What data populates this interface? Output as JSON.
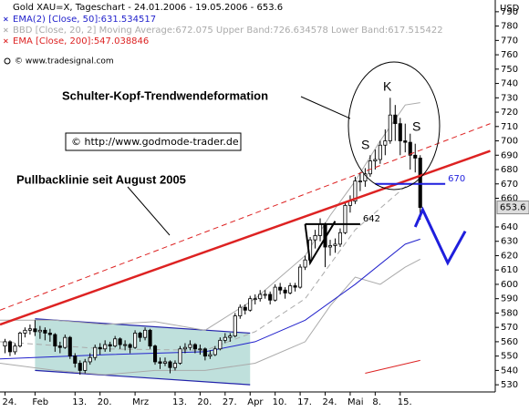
{
  "chart_data": {
    "type": "candlestick",
    "title": "Gold XAU=X, Tageschart - 24.01.2006 - 19.05.2006 - 653.6",
    "legend": [
      {
        "text": "EMA(2) [Close, 50]:631.534517",
        "color": "#2222cc"
      },
      {
        "text": "BBD [Close, 20, 2] Moving Average:672.075 Upper Band:726.634578 Lower Band:617.515422",
        "color": "#aaaaaa"
      },
      {
        "text": "EMA [Close, 200]:547.038846",
        "color": "#dd2222"
      }
    ],
    "source": "© www.tradesignal.com",
    "y_unit": "USD",
    "annotations": {
      "formation": "Schulter-Kopf-Trendwendeformation",
      "copyright": "© http://www.godmode-trader.de",
      "pullback": "Pullbacklinie seit August 2005",
      "left_shoulder": "S",
      "head": "K",
      "right_shoulder": "S"
    },
    "categories": [
      "24.",
      null,
      null,
      null,
      null,
      null,
      "Feb",
      null,
      null,
      null,
      null,
      null,
      null,
      null,
      "13.",
      null,
      null,
      null,
      null,
      "20.",
      null,
      null,
      null,
      null,
      null,
      null,
      "Mrz",
      null,
      null,
      null,
      null,
      null,
      null,
      null,
      "13.",
      null,
      null,
      null,
      null,
      "20.",
      null,
      null,
      null,
      null,
      "27.",
      null,
      null,
      null,
      null,
      "Apr",
      null,
      null,
      null,
      null,
      "10.",
      null,
      null,
      null,
      null,
      "17.",
      null,
      null,
      null,
      null,
      "24.",
      null,
      null,
      null,
      null,
      "Mai",
      null,
      null,
      null,
      null,
      "8.",
      null,
      null,
      null,
      null,
      "15.",
      null,
      null,
      null,
      null
    ],
    "ohlc": [
      [
        557,
        562,
        552,
        560
      ],
      [
        560,
        561,
        550,
        553
      ],
      [
        553,
        559,
        551,
        557
      ],
      [
        557,
        567,
        556,
        566
      ],
      [
        566,
        570,
        563,
        568
      ],
      [
        568,
        572,
        565,
        569
      ],
      [
        569,
        575,
        564,
        567
      ],
      [
        567,
        571,
        562,
        568
      ],
      [
        568,
        570,
        561,
        566
      ],
      [
        566,
        569,
        560,
        565
      ],
      [
        565,
        566,
        553,
        557
      ],
      [
        557,
        560,
        552,
        556
      ],
      [
        556,
        565,
        555,
        563
      ],
      [
        563,
        564,
        548,
        550
      ],
      [
        550,
        552,
        542,
        545
      ],
      [
        545,
        547,
        537,
        540
      ],
      [
        540,
        548,
        538,
        546
      ],
      [
        546,
        552,
        544,
        549
      ],
      [
        549,
        558,
        547,
        556
      ],
      [
        556,
        559,
        551,
        555
      ],
      [
        555,
        561,
        553,
        558
      ],
      [
        558,
        560,
        553,
        557
      ],
      [
        557,
        564,
        556,
        562
      ],
      [
        562,
        563,
        555,
        558
      ],
      [
        558,
        561,
        554,
        558
      ],
      [
        558,
        559,
        552,
        556
      ],
      [
        556,
        568,
        555,
        566
      ],
      [
        566,
        567,
        560,
        563
      ],
      [
        563,
        570,
        561,
        568
      ],
      [
        568,
        569,
        555,
        557
      ],
      [
        557,
        558,
        544,
        546
      ],
      [
        546,
        549,
        541,
        545
      ],
      [
        545,
        549,
        543,
        546
      ],
      [
        546,
        547,
        538,
        542
      ],
      [
        542,
        547,
        540,
        545
      ],
      [
        545,
        557,
        544,
        555
      ],
      [
        555,
        559,
        552,
        556
      ],
      [
        556,
        561,
        554,
        558
      ],
      [
        558,
        559,
        552,
        555
      ],
      [
        555,
        558,
        551,
        555
      ],
      [
        555,
        556,
        547,
        550
      ],
      [
        550,
        554,
        548,
        551
      ],
      [
        551,
        557,
        550,
        555
      ],
      [
        555,
        563,
        554,
        561
      ],
      [
        561,
        566,
        559,
        563
      ],
      [
        563,
        566,
        560,
        564
      ],
      [
        564,
        580,
        563,
        578
      ],
      [
        578,
        586,
        576,
        584
      ],
      [
        584,
        586,
        579,
        582
      ],
      [
        582,
        592,
        581,
        590
      ],
      [
        590,
        593,
        586,
        590
      ],
      [
        590,
        596,
        588,
        593
      ],
      [
        593,
        596,
        590,
        593
      ],
      [
        593,
        595,
        586,
        589
      ],
      [
        589,
        600,
        588,
        598
      ],
      [
        598,
        601,
        593,
        596
      ],
      [
        596,
        598,
        590,
        594
      ],
      [
        594,
        601,
        593,
        599
      ],
      [
        599,
        601,
        595,
        598
      ],
      [
        598,
        614,
        597,
        612
      ],
      [
        612,
        620,
        610,
        617
      ],
      [
        617,
        633,
        615,
        631
      ],
      [
        631,
        638,
        625,
        634
      ],
      [
        634,
        646,
        630,
        642
      ],
      [
        642,
        643,
        612,
        626
      ],
      [
        626,
        631,
        620,
        627
      ],
      [
        627,
        632,
        622,
        628
      ],
      [
        628,
        639,
        626,
        636
      ],
      [
        636,
        657,
        635,
        655
      ],
      [
        655,
        662,
        650,
        658
      ],
      [
        658,
        675,
        656,
        672
      ],
      [
        672,
        678,
        665,
        672
      ],
      [
        672,
        681,
        668,
        677
      ],
      [
        677,
        690,
        675,
        686
      ],
      [
        686,
        694,
        680,
        687
      ],
      [
        687,
        700,
        684,
        697
      ],
      [
        697,
        708,
        690,
        700
      ],
      [
        700,
        730,
        698,
        718
      ],
      [
        718,
        725,
        700,
        712
      ],
      [
        712,
        716,
        690,
        700
      ],
      [
        700,
        712,
        692,
        699
      ],
      [
        699,
        705,
        680,
        690
      ],
      [
        690,
        698,
        678,
        688
      ],
      [
        688,
        690,
        645,
        653.6
      ]
    ],
    "up_color": "#ffffff",
    "down_color": "#000000",
    "lines": [
      {
        "color": "#aaaaaa",
        "width": 1,
        "dash": false,
        "points": [
          [
            -1,
            575
          ],
          [
            10,
            575
          ],
          [
            20,
            572
          ],
          [
            30,
            574
          ],
          [
            40,
            568
          ],
          [
            50,
            590
          ],
          [
            60,
            620
          ],
          [
            65,
            648
          ],
          [
            70,
            672
          ],
          [
            75,
            700
          ],
          [
            80,
            725
          ],
          [
            83,
            726.6
          ]
        ]
      },
      {
        "color": "#aaaaaa",
        "width": 1,
        "dash": false,
        "points": [
          [
            -1,
            545
          ],
          [
            10,
            540
          ],
          [
            20,
            537
          ],
          [
            30,
            540
          ],
          [
            40,
            540
          ],
          [
            50,
            545
          ],
          [
            60,
            560
          ],
          [
            65,
            585
          ],
          [
            70,
            605
          ],
          [
            75,
            600
          ],
          [
            80,
            612
          ],
          [
            83,
            617.5
          ]
        ]
      },
      {
        "color": "#aaaaaa",
        "width": 1,
        "dash": true,
        "points": [
          [
            -1,
            560
          ],
          [
            20,
            555
          ],
          [
            40,
            554
          ],
          [
            50,
            567
          ],
          [
            60,
            590
          ],
          [
            70,
            638
          ],
          [
            80,
            668
          ],
          [
            83,
            672.1
          ]
        ]
      },
      {
        "color": "#2222cc",
        "width": 1,
        "dash": false,
        "points": [
          [
            -1,
            548
          ],
          [
            20,
            551
          ],
          [
            40,
            553
          ],
          [
            50,
            560
          ],
          [
            60,
            575
          ],
          [
            70,
            600
          ],
          [
            80,
            628
          ],
          [
            83,
            631.5
          ]
        ]
      },
      {
        "color": "#dd2222",
        "width": 1,
        "dash": false,
        "points": [
          [
            72,
            538
          ],
          [
            83,
            547
          ]
        ]
      },
      {
        "color": "#dd2222",
        "width": 2.5,
        "dash": false,
        "points": [
          [
            -1,
            572
          ],
          [
            97,
            693
          ]
        ]
      },
      {
        "color": "#dd2222",
        "width": 1,
        "dash": true,
        "points": [
          [
            -1,
            582
          ],
          [
            97,
            712
          ]
        ]
      },
      {
        "color": "#1f1fdd",
        "width": 3,
        "dash": false,
        "points": [
          [
            82,
            640
          ],
          [
            83.5,
            652
          ],
          [
            88.5,
            615
          ],
          [
            92,
            637
          ]
        ]
      },
      {
        "color": "#000000",
        "width": 2,
        "dash": false,
        "points": [
          [
            60,
            642
          ],
          [
            61,
            615
          ],
          [
            66,
            644
          ]
        ]
      }
    ],
    "channel": {
      "color": "#2222aa",
      "fill": "#bfe0dc",
      "points": [
        [
          6,
          576
        ],
        [
          49,
          566
        ],
        [
          49,
          530
        ],
        [
          6,
          540
        ]
      ]
    },
    "levels": [
      {
        "value": 642,
        "label": "642",
        "from": 60,
        "to": 71,
        "color": "#000000"
      },
      {
        "value": 670,
        "label": "670",
        "from": 74,
        "to": 88,
        "color": "#1f1fdd"
      }
    ],
    "xlim": [
      -1,
      98
    ],
    "ylim": [
      525,
      795
    ],
    "yticks": [
      530,
      540,
      550,
      560,
      570,
      580,
      590,
      600,
      610,
      620,
      630,
      640,
      660,
      670,
      680,
      690,
      700,
      710,
      720,
      730,
      740,
      750,
      760,
      770,
      780,
      790
    ],
    "grid": false
  }
}
